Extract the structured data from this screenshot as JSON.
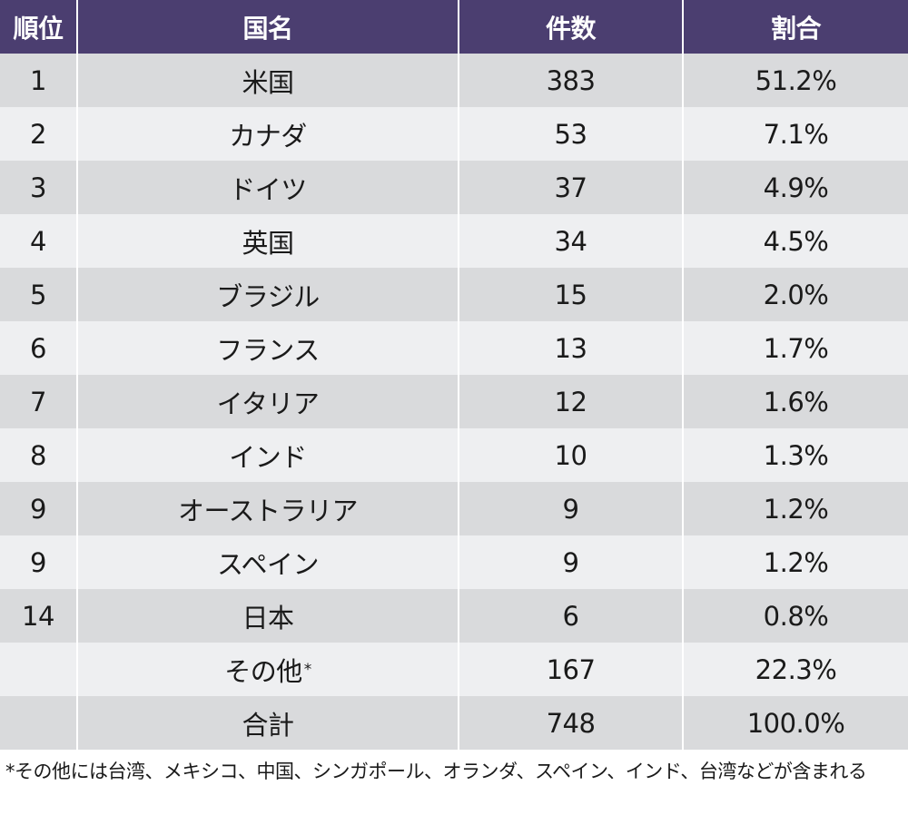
{
  "table": {
    "headers": {
      "rank": "順位",
      "country": "国名",
      "count": "件数",
      "share": "割合"
    },
    "rows": [
      {
        "rank": "1",
        "country": "米国",
        "count": "383",
        "share": "51.2%"
      },
      {
        "rank": "2",
        "country": "カナダ",
        "count": "53",
        "share": "7.1%"
      },
      {
        "rank": "3",
        "country": "ドイツ",
        "count": "37",
        "share": "4.9%"
      },
      {
        "rank": "4",
        "country": "英国",
        "count": "34",
        "share": "4.5%"
      },
      {
        "rank": "5",
        "country": "ブラジル",
        "count": "15",
        "share": "2.0%"
      },
      {
        "rank": "6",
        "country": "フランス",
        "count": "13",
        "share": "1.7%"
      },
      {
        "rank": "7",
        "country": "イタリア",
        "count": "12",
        "share": "1.6%"
      },
      {
        "rank": "8",
        "country": "インド",
        "count": "10",
        "share": "1.3%"
      },
      {
        "rank": "9",
        "country": "オーストラリア",
        "count": "9",
        "share": "1.2%"
      },
      {
        "rank": "9",
        "country": "スペイン",
        "count": "9",
        "share": "1.2%"
      },
      {
        "rank": "14",
        "country": "日本",
        "count": "6",
        "share": "0.8%"
      },
      {
        "rank": "",
        "country": "その他",
        "count": "167",
        "share": "22.3%"
      },
      {
        "rank": "",
        "country": "合計",
        "count": "748",
        "share": "100.0%"
      }
    ],
    "other_marker": "*"
  },
  "footnote": "*その他には台湾、メキシコ、中国、シンガポール、オランダ、スペイン、インド、台湾などが含まれる",
  "colors": {
    "header_bg": "#4b3e70",
    "row_dark": "#d9dadc",
    "row_light": "#eeeff1"
  }
}
